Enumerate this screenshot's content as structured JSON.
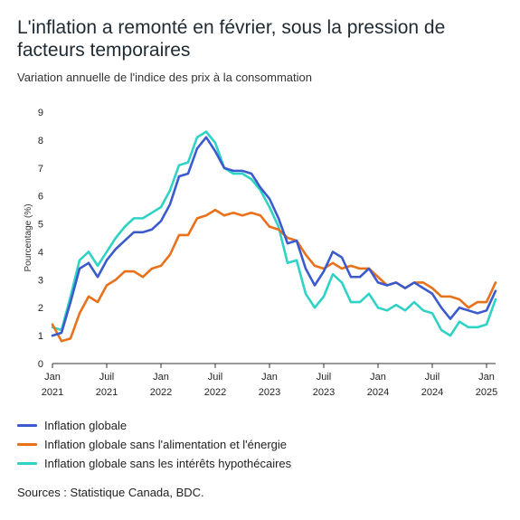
{
  "title": "L'inflation a remonté en février, sous la pression de facteurs temporaires",
  "subtitle": "Variation annuelle de l'indice des prix à la consommation",
  "source": "Sources : Statistique Canada, BDC.",
  "chart_data": {
    "type": "line",
    "title": "L'inflation a remonté en février, sous la pression de facteurs temporaires",
    "subtitle": "Variation annuelle de l'indice des prix à la consommation",
    "ylabel": "Pourcentage (%)",
    "xlabel": "",
    "ylim": [
      0,
      9
    ],
    "yticks": [
      0,
      1,
      2,
      3,
      4,
      5,
      6,
      7,
      8,
      9
    ],
    "grid": false,
    "legend_position": "bottom",
    "x_start": "2021-01",
    "x_end": "2025-02",
    "x_ticks": [
      {
        "month_index": 0,
        "line1": "Jan",
        "line2": "2021"
      },
      {
        "month_index": 6,
        "line1": "Juil",
        "line2": "2021"
      },
      {
        "month_index": 12,
        "line1": "Jan",
        "line2": "2022"
      },
      {
        "month_index": 18,
        "line1": "Juil",
        "line2": "2022"
      },
      {
        "month_index": 24,
        "line1": "Jan",
        "line2": "2023"
      },
      {
        "month_index": 30,
        "line1": "Juil",
        "line2": "2023"
      },
      {
        "month_index": 36,
        "line1": "Jan",
        "line2": "2024"
      },
      {
        "month_index": 42,
        "line1": "Juil",
        "line2": "2024"
      },
      {
        "month_index": 48,
        "line1": "Jan",
        "line2": "2025"
      }
    ],
    "series": [
      {
        "name": "Inflation globale",
        "color": "#3b5bcc",
        "values": [
          1.0,
          1.1,
          2.2,
          3.4,
          3.6,
          3.1,
          3.7,
          4.1,
          4.4,
          4.7,
          4.7,
          4.8,
          5.1,
          5.7,
          6.7,
          6.8,
          7.7,
          8.1,
          7.6,
          7.0,
          6.9,
          6.9,
          6.8,
          6.3,
          5.9,
          5.2,
          4.3,
          4.4,
          3.4,
          2.8,
          3.3,
          4.0,
          3.8,
          3.1,
          3.1,
          3.4,
          2.9,
          2.8,
          2.9,
          2.7,
          2.9,
          2.7,
          2.5,
          2.0,
          1.6,
          2.0,
          1.9,
          1.8,
          1.9,
          2.6
        ]
      },
      {
        "name": "Inflation globale sans l'alimentation et l'énergie",
        "color": "#e8711a",
        "values": [
          1.4,
          0.8,
          0.9,
          1.8,
          2.4,
          2.2,
          2.8,
          3.0,
          3.3,
          3.3,
          3.1,
          3.4,
          3.5,
          3.9,
          4.6,
          4.6,
          5.2,
          5.3,
          5.5,
          5.3,
          5.4,
          5.3,
          5.4,
          5.3,
          4.9,
          4.8,
          4.5,
          4.4,
          3.9,
          3.5,
          3.4,
          3.6,
          3.4,
          3.5,
          3.4,
          3.4,
          3.1,
          2.8,
          2.9,
          2.7,
          2.9,
          2.9,
          2.7,
          2.4,
          2.4,
          2.3,
          2.0,
          2.2,
          2.2,
          2.9
        ]
      },
      {
        "name": "Inflation globale sans les intérêts hypothécaires",
        "color": "#2ed3c6",
        "values": [
          1.3,
          1.2,
          2.4,
          3.7,
          4.0,
          3.5,
          4.0,
          4.5,
          4.9,
          5.2,
          5.2,
          5.4,
          5.6,
          6.2,
          7.1,
          7.2,
          8.1,
          8.3,
          7.9,
          7.0,
          6.8,
          6.8,
          6.6,
          6.2,
          5.6,
          4.9,
          3.6,
          3.7,
          2.5,
          2.0,
          2.4,
          3.2,
          2.9,
          2.2,
          2.2,
          2.5,
          2.0,
          1.9,
          2.1,
          1.9,
          2.2,
          1.9,
          1.8,
          1.2,
          1.0,
          1.5,
          1.3,
          1.3,
          1.4,
          2.3
        ]
      }
    ]
  }
}
